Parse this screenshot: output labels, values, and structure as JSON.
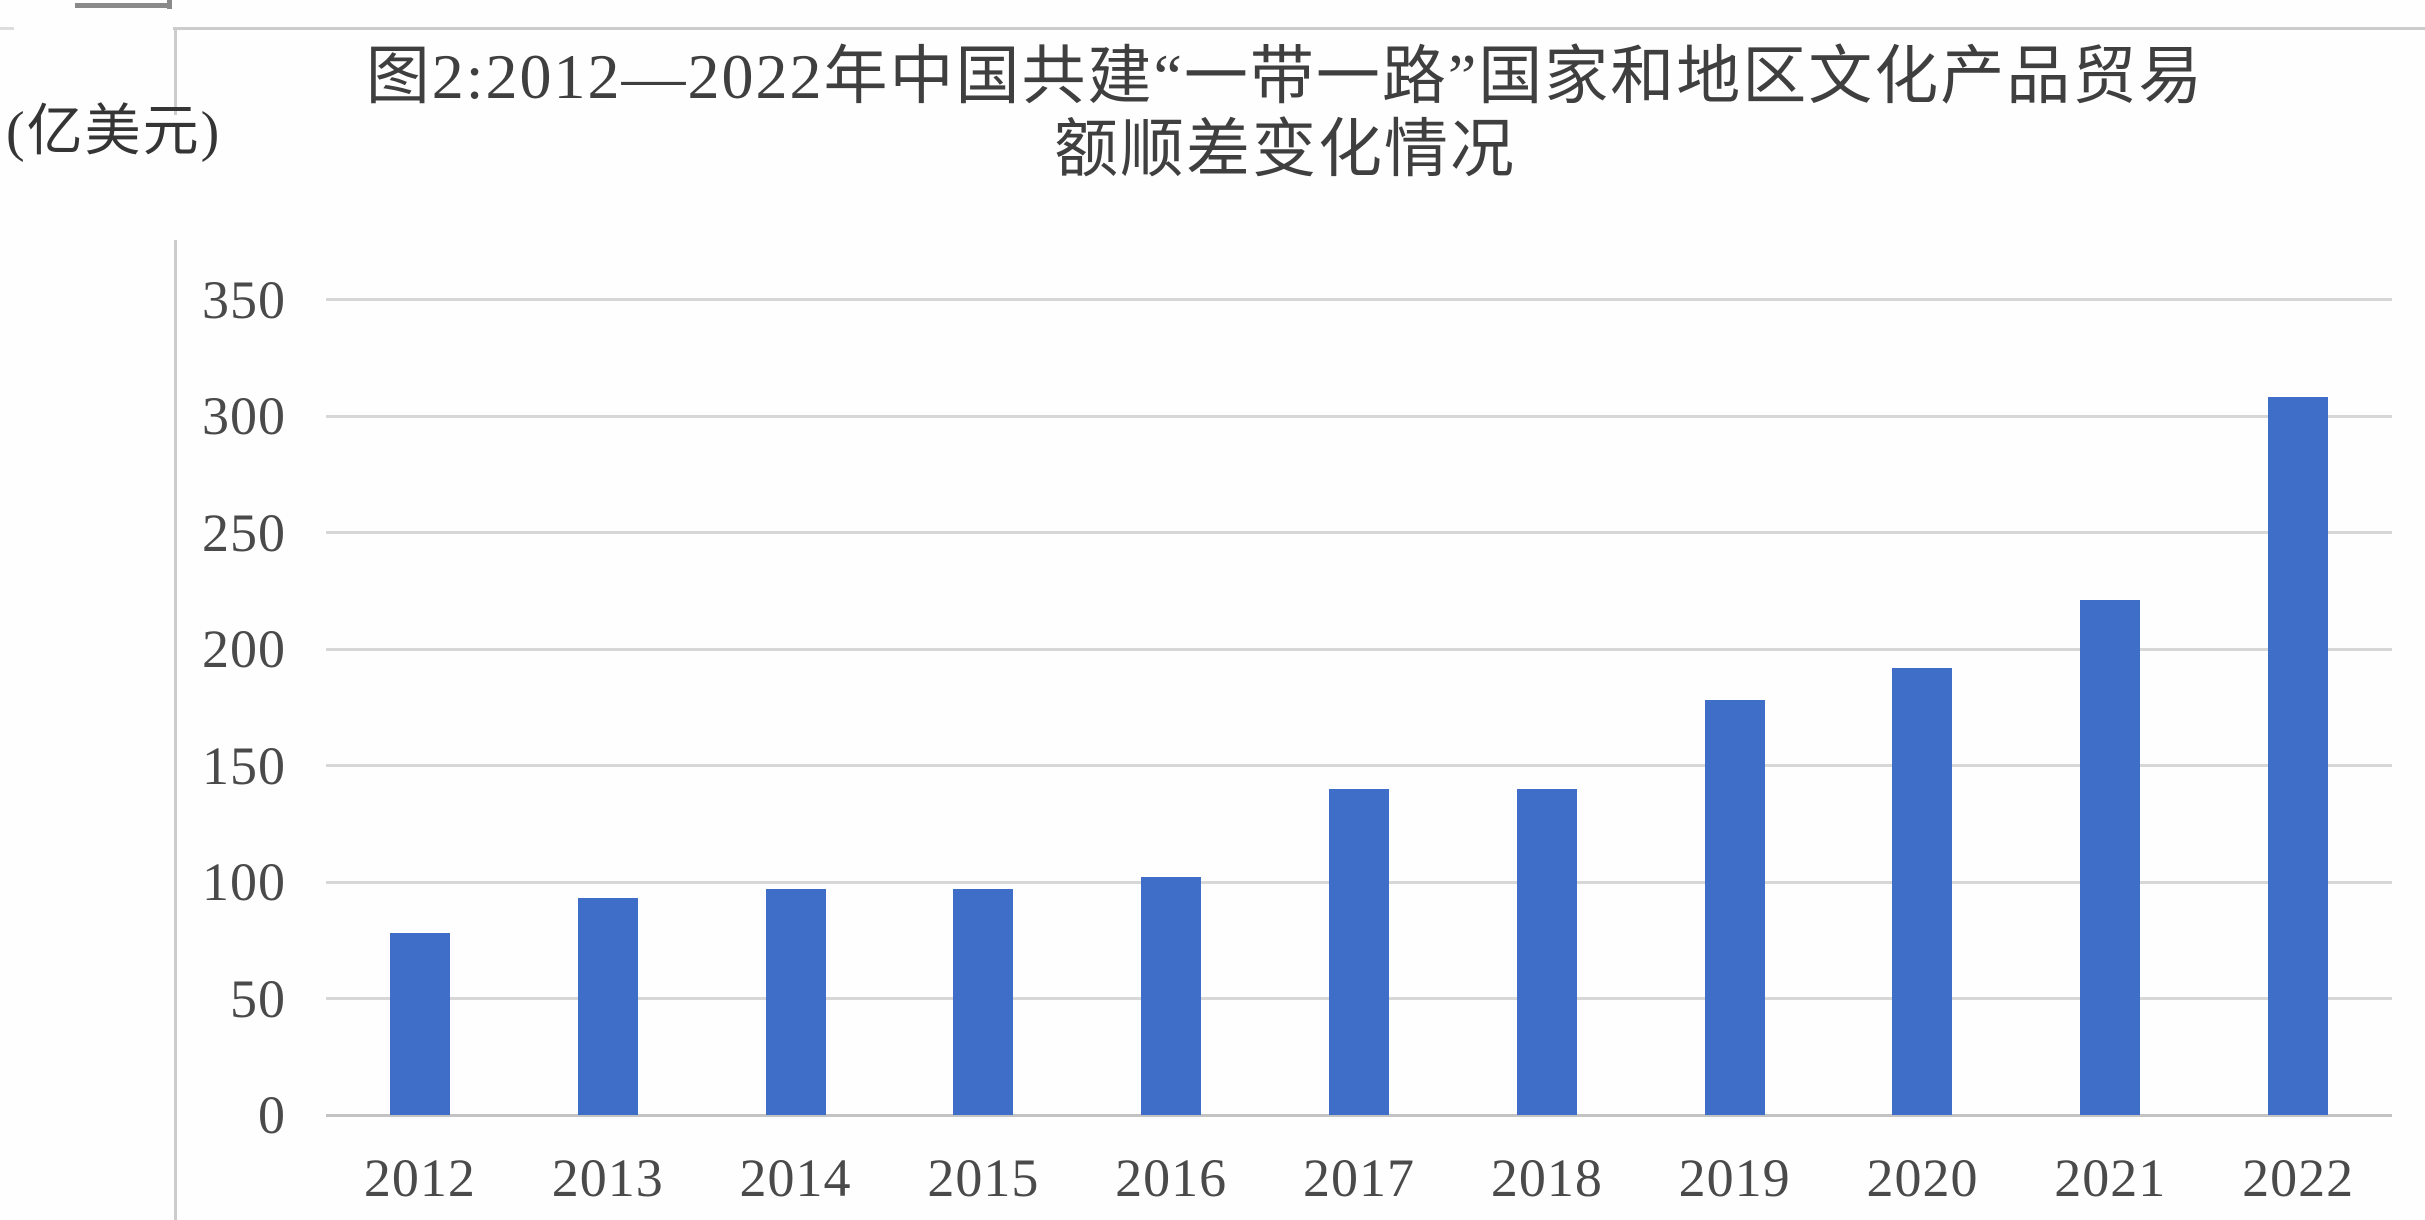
{
  "chart_data": {
    "type": "bar",
    "title_line1": "图2:2012—2022年中国共建“一带一路”国家和地区文化产品贸易",
    "title_line2": "额顺差变化情况",
    "unit_label": "(亿美元)",
    "categories": [
      "2012",
      "2013",
      "2014",
      "2015",
      "2016",
      "2017",
      "2018",
      "2019",
      "2020",
      "2021",
      "2022"
    ],
    "values": [
      78,
      93,
      97,
      97,
      102,
      140,
      140,
      178,
      192,
      221,
      308
    ],
    "series_name": "文化产品贸易额顺差",
    "yticks": [
      0,
      50,
      100,
      150,
      200,
      250,
      300,
      350
    ],
    "ylim": [
      0,
      350
    ],
    "xlabel": "",
    "ylabel": "(亿美元)",
    "grid": true,
    "legend": "none",
    "colors": {
      "bar": "#3e6ec7",
      "gridline": "#d7d7d7",
      "axis_line": "#c3c3c3",
      "title_text": "#3f3f3f",
      "tick_text": "#4a4a4a",
      "background": "#fefefe",
      "document_border": "#cccccc",
      "corner_mark": "#8a8a8a"
    }
  }
}
